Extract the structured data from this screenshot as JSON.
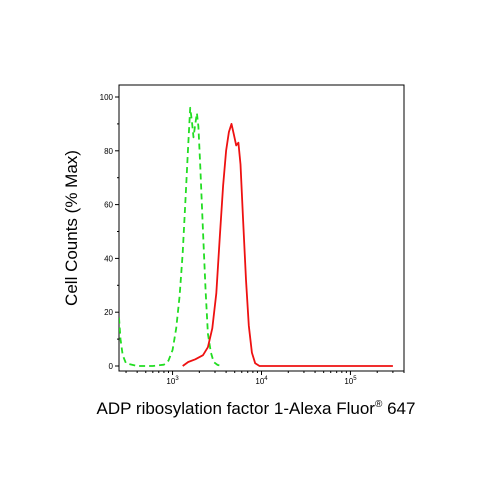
{
  "chart_data": {
    "type": "line",
    "xlabel": {
      "main": "ADP ribosylation factor 1-Alexa Fluor",
      "superscript": "®",
      "suffix": " 647"
    },
    "ylabel": "Cell Counts (% Max)",
    "x_scale": "log",
    "xlim": [
      250,
      400000
    ],
    "ylim": [
      0,
      100
    ],
    "y_ticks": [
      "0",
      "20",
      "40",
      "60",
      "80",
      "100"
    ],
    "x_ticks": [
      {
        "base": "10",
        "exp": "3",
        "value": 1000
      },
      {
        "base": "10",
        "exp": "4",
        "value": 10000
      },
      {
        "base": "10",
        "exp": "5",
        "value": 100000
      }
    ],
    "series": [
      {
        "color": "#22dd22",
        "style": "dashed",
        "points": [
          [
            250,
            18
          ],
          [
            260,
            10
          ],
          [
            275,
            4
          ],
          [
            300,
            1
          ],
          [
            400,
            0
          ],
          [
            600,
            0
          ],
          [
            800,
            0.5
          ],
          [
            900,
            2
          ],
          [
            1000,
            6
          ],
          [
            1100,
            14
          ],
          [
            1200,
            26
          ],
          [
            1300,
            42
          ],
          [
            1400,
            62
          ],
          [
            1500,
            82
          ],
          [
            1580,
            96
          ],
          [
            1650,
            91
          ],
          [
            1720,
            85
          ],
          [
            1800,
            90
          ],
          [
            1880,
            94
          ],
          [
            1950,
            89
          ],
          [
            2050,
            74
          ],
          [
            2200,
            50
          ],
          [
            2350,
            28
          ],
          [
            2500,
            12
          ],
          [
            2700,
            5
          ],
          [
            2900,
            1.5
          ],
          [
            3200,
            0.4
          ],
          [
            3600,
            0
          ]
        ]
      },
      {
        "color": "#ee1111",
        "style": "solid",
        "points": [
          [
            1300,
            0
          ],
          [
            1500,
            1.5
          ],
          [
            1800,
            2.5
          ],
          [
            2200,
            4
          ],
          [
            2500,
            7
          ],
          [
            2800,
            14
          ],
          [
            3100,
            27
          ],
          [
            3400,
            48
          ],
          [
            3700,
            67
          ],
          [
            4000,
            80
          ],
          [
            4300,
            87
          ],
          [
            4600,
            90
          ],
          [
            4900,
            86
          ],
          [
            5200,
            82
          ],
          [
            5500,
            83
          ],
          [
            5800,
            75
          ],
          [
            6200,
            55
          ],
          [
            6700,
            32
          ],
          [
            7200,
            15
          ],
          [
            7800,
            5
          ],
          [
            8500,
            1
          ],
          [
            9500,
            0
          ],
          [
            20000,
            0
          ],
          [
            100000,
            0
          ],
          [
            300000,
            0
          ]
        ]
      }
    ]
  }
}
